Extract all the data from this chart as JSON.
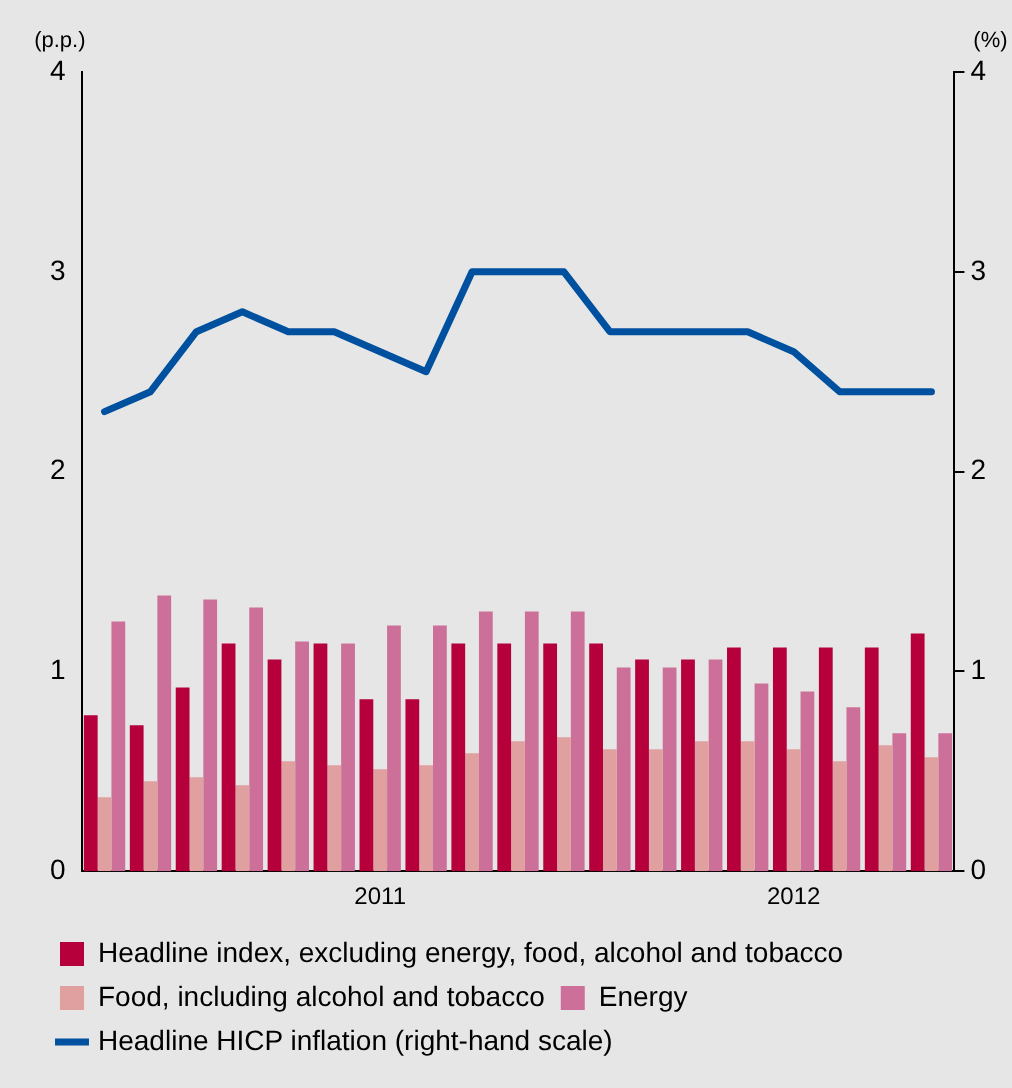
{
  "chart_data": {
    "type": "bar",
    "ylabel": "(p.p.)",
    "y2label": "(%)",
    "categories": [
      null,
      null,
      null,
      null,
      null,
      null,
      "2011",
      null,
      null,
      null,
      null,
      null,
      null,
      null,
      null,
      "2012",
      null,
      null,
      null
    ],
    "series": [
      {
        "name": "Headline index, excluding energy, food, alcohol and tobacco",
        "color": "#b5003c",
        "values": [
          0.78,
          0.73,
          0.92,
          1.14,
          1.06,
          1.14,
          0.86,
          0.86,
          1.14,
          1.14,
          1.14,
          1.14,
          1.06,
          1.06,
          1.12,
          1.12,
          1.12,
          1.12,
          1.19
        ]
      },
      {
        "name": "Food, including alcohol and tobacco",
        "color": "#e0a0a0",
        "values": [
          0.37,
          0.45,
          0.47,
          0.43,
          0.55,
          0.53,
          0.51,
          0.53,
          0.59,
          0.65,
          0.67,
          0.61,
          0.61,
          0.65,
          0.65,
          0.61,
          0.55,
          0.63,
          0.57
        ]
      },
      {
        "name": "Energy",
        "color": "#cc7099",
        "values": [
          1.25,
          1.38,
          1.36,
          1.32,
          1.15,
          1.14,
          1.23,
          1.23,
          1.3,
          1.3,
          1.3,
          1.02,
          1.02,
          1.06,
          0.94,
          0.9,
          0.82,
          0.69,
          0.69
        ]
      },
      {
        "name": "Headline HICP inflation (right-hand scale)",
        "type": "line",
        "axis": "y2",
        "color": "#0050a0",
        "values": [
          2.3,
          2.4,
          2.7,
          2.8,
          2.7,
          2.7,
          2.6,
          2.5,
          3.0,
          3.0,
          3.0,
          2.7,
          2.7,
          2.7,
          2.7,
          2.6,
          2.4,
          2.4,
          2.4
        ]
      }
    ],
    "ylim": [
      0,
      4
    ],
    "yticks": [
      0,
      1,
      2,
      3,
      4
    ],
    "y2lim": [
      0,
      4
    ],
    "y2ticks": [
      0,
      1,
      2,
      3,
      4
    ],
    "grid": false,
    "legend": "bottom",
    "marker": "none",
    "line_style": "solid"
  }
}
